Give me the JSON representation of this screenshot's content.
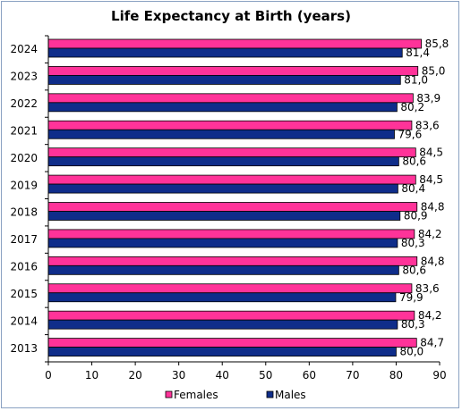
{
  "chart_data": {
    "type": "bar",
    "orientation": "horizontal",
    "title": "Life Expectancy at Birth (years)",
    "categories": [
      "2024",
      "2023",
      "2022",
      "2021",
      "2020",
      "2019",
      "2018",
      "2017",
      "2016",
      "2015",
      "2014",
      "2013"
    ],
    "series": [
      {
        "name": "Females",
        "color": "#ff3399",
        "values": [
          85.8,
          85.0,
          83.9,
          83.6,
          84.5,
          84.5,
          84.8,
          84.2,
          84.8,
          83.6,
          84.2,
          84.7
        ],
        "labels": [
          "85,8",
          "85,0",
          "83,9",
          "83,6",
          "84,5",
          "84,5",
          "84,8",
          "84,2",
          "84,8",
          "83,6",
          "84,2",
          "84,7"
        ]
      },
      {
        "name": "Males",
        "color": "#0f2d8a",
        "values": [
          81.4,
          81.0,
          80.2,
          79.6,
          80.6,
          80.4,
          80.9,
          80.3,
          80.6,
          79.9,
          80.3,
          80.0
        ],
        "labels": [
          "81,4",
          "81,0",
          "80,2",
          "79,6",
          "80,6",
          "80,4",
          "80,9",
          "80,3",
          "80,6",
          "79,9",
          "80,3",
          "80,0"
        ]
      }
    ],
    "xlim": [
      0,
      90
    ],
    "xticks": [
      "0",
      "10",
      "20",
      "30",
      "40",
      "50",
      "60",
      "70",
      "80",
      "90"
    ],
    "grid": false,
    "legend": "bottom"
  }
}
